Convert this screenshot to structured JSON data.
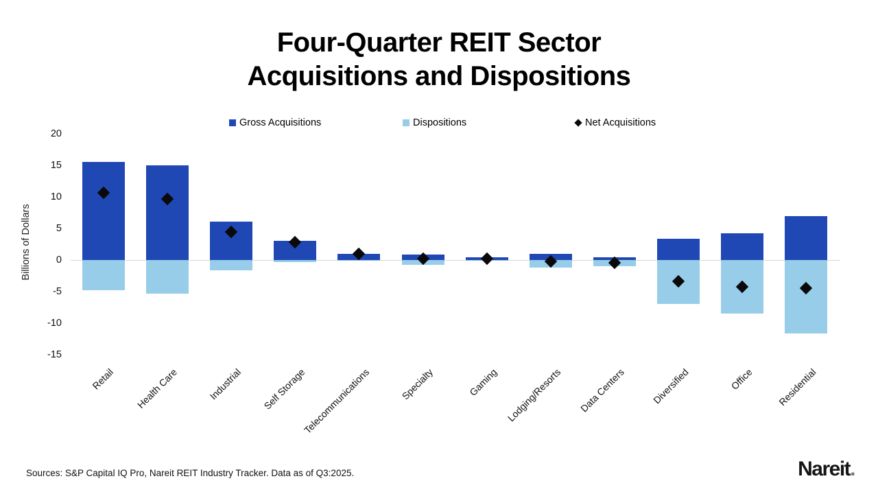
{
  "title": {
    "line1": "Four-Quarter REIT Sector",
    "line2": "Acquisitions and Dispositions"
  },
  "legend": {
    "items": [
      {
        "label": "Gross Acquisitions",
        "marker": "square",
        "color": "#2048b4"
      },
      {
        "label": "Dispositions",
        "marker": "square",
        "color": "#97cde9"
      },
      {
        "label": "Net Acquisitions",
        "marker": "diamond",
        "color": "#0a0a0a"
      }
    ]
  },
  "footer": {
    "source_text": "Sources: S&P Capital IQ Pro, Nareit REIT Industry Tracker. Data as of Q3:2025.",
    "logo_text": "Nareit",
    "logo_dot": "."
  },
  "chart_data": {
    "type": "bar",
    "title": "Four-Quarter REIT Sector Acquisitions and Dispositions",
    "categories": [
      "Retail",
      "Health Care",
      "Industrial",
      "Self Storage",
      "Telecommunications",
      "Specialty",
      "Gaming",
      "Lodging/Resorts",
      "Data Centers",
      "Diversified",
      "Office",
      "Residential"
    ],
    "series": [
      {
        "name": "Gross Acquisitions",
        "type": "bar",
        "color": "#2048b4",
        "values": [
          15.5,
          15.0,
          6.1,
          3.0,
          1.0,
          0.9,
          0.4,
          1.0,
          0.4,
          3.4,
          4.2,
          7.0
        ]
      },
      {
        "name": "Dispositions",
        "type": "bar",
        "color": "#97cde9",
        "values": [
          -4.8,
          -5.3,
          -1.6,
          -0.3,
          -0.1,
          -0.8,
          -0.1,
          -1.2,
          -1.0,
          -7.0,
          -8.5,
          -11.6
        ]
      },
      {
        "name": "Net Acquisitions",
        "type": "scatter",
        "marker": "diamond",
        "color": "#0a0a0a",
        "values": [
          10.7,
          9.7,
          4.5,
          2.8,
          1.0,
          0.2,
          0.2,
          -0.2,
          -0.4,
          -3.4,
          -4.2,
          -4.5
        ]
      }
    ],
    "ylabel": "Billions of Dollars",
    "ylim": [
      -15,
      20
    ],
    "yticks": [
      20,
      15,
      10,
      5,
      0,
      -5,
      -10,
      -15
    ],
    "grid": "zero-line-only",
    "legend_position": "top"
  }
}
